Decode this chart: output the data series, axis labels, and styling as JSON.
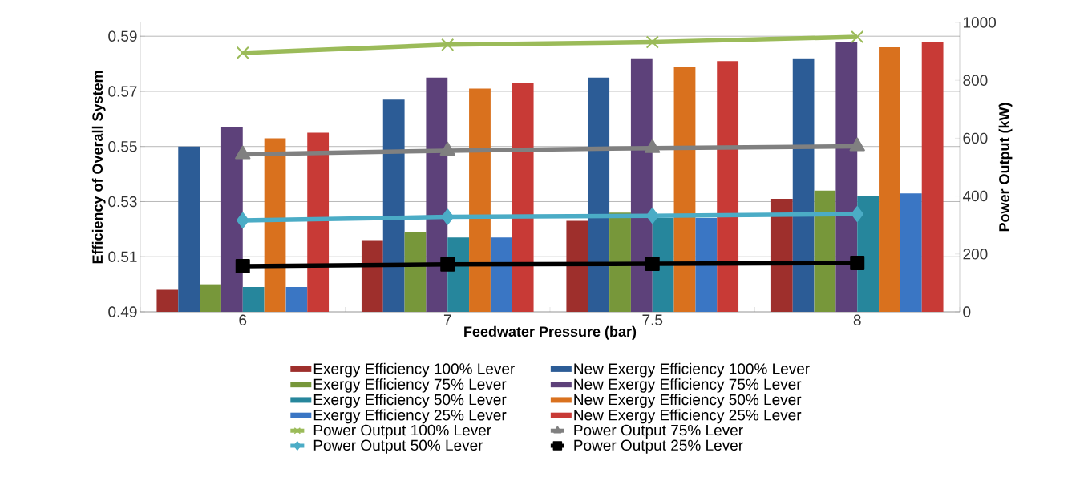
{
  "chart_data": {
    "type": "bar",
    "categories": [
      "6",
      "7",
      "7.5",
      "8"
    ],
    "xlabel": "Feedwater Pressure (bar)",
    "ylabel": "Efficiency of Overall System",
    "y2label": "Power Output (kW)",
    "ylim": [
      0.49,
      0.595
    ],
    "yticks": [
      0.49,
      0.51,
      0.53,
      0.55,
      0.57,
      0.59
    ],
    "y2lim": [
      0,
      1000
    ],
    "y2ticks": [
      0,
      200,
      400,
      600,
      800,
      1000
    ],
    "grid": "y",
    "legend": "bottom",
    "series": [
      {
        "name": "Exergy Efficiency 100% Lever",
        "color": "#9e2f2c",
        "values": [
          0.498,
          0.516,
          0.523,
          0.531
        ]
      },
      {
        "name": "New Exergy Efficiency 100% Lever",
        "color": "#2c5c96",
        "values": [
          0.55,
          0.567,
          0.575,
          0.582
        ]
      },
      {
        "name": "Exergy Efficiency 75% Lever",
        "color": "#77973a",
        "values": [
          0.5,
          0.519,
          0.526,
          0.534
        ]
      },
      {
        "name": "New Exergy Efficiency 75% Lever",
        "color": "#5d417a",
        "values": [
          0.557,
          0.575,
          0.582,
          0.588
        ]
      },
      {
        "name": "Exergy Efficiency 50% Lever",
        "color": "#26869c",
        "values": [
          0.499,
          0.517,
          0.524,
          0.532
        ]
      },
      {
        "name": "New Exergy Efficiency 50% Lever",
        "color": "#d9711e",
        "values": [
          0.553,
          0.571,
          0.579,
          0.586
        ]
      },
      {
        "name": "Exergy Efficiency 25% Lever",
        "color": "#3a76c4",
        "values": [
          0.499,
          0.517,
          0.524,
          0.533
        ]
      },
      {
        "name": "New Exergy Efficiency 25% Lever",
        "color": "#c83a36",
        "values": [
          0.555,
          0.573,
          0.581,
          0.588
        ]
      },
      {
        "name": "Power Output 100% Lever",
        "type": "line",
        "axis": "y2",
        "marker": "cross",
        "color": "#9bbb59",
        "values": [
          895,
          923,
          932,
          950
        ]
      },
      {
        "name": "Power Output 75% Lever",
        "type": "line",
        "axis": "y2",
        "marker": "triangle",
        "color": "#808080",
        "values": [
          544,
          557,
          566,
          572
        ]
      },
      {
        "name": "Power Output 50% Lever",
        "type": "line",
        "axis": "y2",
        "marker": "diamond",
        "color": "#4bacc6",
        "values": [
          316,
          328,
          332,
          338
        ]
      },
      {
        "name": "Power Output 25% Lever",
        "type": "line",
        "axis": "y2",
        "marker": "square",
        "color": "#000000",
        "values": [
          158,
          164,
          166,
          169
        ]
      }
    ]
  }
}
